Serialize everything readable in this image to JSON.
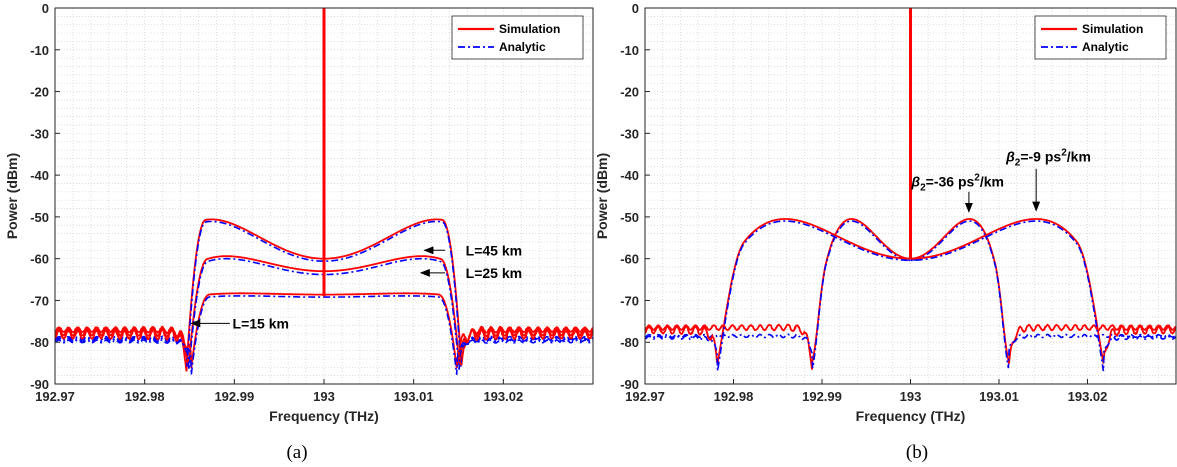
{
  "chart_data": [
    {
      "type": "line",
      "caption": "(a)",
      "xlabel": "Frequency (THz)",
      "ylabel": "Power (dBm)",
      "xlim": [
        192.97,
        193.03
      ],
      "ylim": [
        -90,
        0
      ],
      "xticks": [
        "192.97",
        "192.98",
        "192.99",
        "193",
        "193.01",
        "193.02"
      ],
      "yticks": [
        "0",
        "-10",
        "-20",
        "-30",
        "-40",
        "-50",
        "-60",
        "-70",
        "-80",
        "-90"
      ],
      "grid": "minor-dotted",
      "legend": {
        "position": "top-right",
        "entries": [
          "Simulation",
          "Analytic"
        ]
      },
      "colors": {
        "Simulation": "#ff0000",
        "Analytic": "#0000ff"
      },
      "pump": {
        "x": 193.0,
        "y_top": 0,
        "y_bottom": -69
      },
      "curves": [
        {
          "label": "L=45 km",
          "edges": [
            192.9847,
            193.0153
          ],
          "peak_sim": -50.6,
          "center_sim": -60,
          "peak_ana": -51.1,
          "center_ana": -60.6,
          "shape": 0.82
        },
        {
          "label": "L=25 km",
          "edges": [
            192.9849,
            193.0151
          ],
          "peak_sim": -59.4,
          "center_sim": -63,
          "peak_ana": -60.0,
          "center_ana": -63.8,
          "shape": 0.72
        },
        {
          "label": "L=15 km",
          "edges": [
            192.9852,
            193.0148
          ],
          "peak_sim": -68.3,
          "center_sim": -68.6,
          "peak_ana": -68.9,
          "center_ana": -69.2,
          "shape": 0.62
        }
      ],
      "floor_sim": -77,
      "floor_ana": -79,
      "annotations": [
        {
          "text": "L=45 km",
          "x": 193.0158,
          "y": -58,
          "from_x": 193.0135,
          "from_y": -58,
          "to_x": 193.0112,
          "to_y": -58
        },
        {
          "text": "L=25 km",
          "x": 193.0158,
          "y": -63.4,
          "from_x": 193.0135,
          "from_y": -63.4,
          "to_x": 193.0108,
          "to_y": -63.4
        },
        {
          "text": "L=15 km",
          "x": 192.9898,
          "y": -75.5,
          "from_x": 192.9895,
          "from_y": -75.5,
          "to_x": 192.9852,
          "to_y": -75.5
        }
      ]
    },
    {
      "type": "line",
      "caption": "(b)",
      "xlabel": "Frequency (THz)",
      "ylabel": "Power (dBm)",
      "xlim": [
        192.97,
        193.03
      ],
      "ylim": [
        -90,
        0
      ],
      "xticks": [
        "192.97",
        "192.98",
        "192.99",
        "193",
        "193.01",
        "193.02"
      ],
      "yticks": [
        "0",
        "-10",
        "-20",
        "-30",
        "-40",
        "-50",
        "-60",
        "-70",
        "-80",
        "-90"
      ],
      "grid": "minor-dotted",
      "legend": {
        "position": "top-right",
        "entries": [
          "Simulation",
          "Analytic"
        ]
      },
      "colors": {
        "Simulation": "#ff0000",
        "Analytic": "#0000ff"
      },
      "pump": {
        "x": 193.0,
        "y_top": 0,
        "y_bottom": -60
      },
      "curves": [
        {
          "label": "β2=-36 ps2/km",
          "edges": [
            192.9889,
            193.0111
          ],
          "peak_sim": -50.5,
          "center_sim": -60,
          "peak_ana": -51.0,
          "center_ana": -60.4,
          "shape": 0.6
        },
        {
          "label": "β2=-9 ps2/km",
          "edges": [
            192.9782,
            193.0218
          ],
          "peak_sim": -50.5,
          "center_sim": -60,
          "peak_ana": -51.0,
          "center_ana": -60.4,
          "shape": 0.65
        }
      ],
      "floor_sim": -76.5,
      "floor_ana": -78.5,
      "annotations": [
        {
          "text_parts": [
            "β",
            "2",
            "=-36 ps",
            "2",
            "/km"
          ],
          "x": 193.0001,
          "y": -41.5,
          "from_x": 193.0066,
          "from_y": -44,
          "to_x": 193.0066,
          "to_y": -48.8
        },
        {
          "text_parts": [
            "β",
            "2",
            "=-9 ps",
            "2",
            "/km"
          ],
          "x": 193.0108,
          "y": -35.5,
          "from_x": 193.0142,
          "from_y": -38.5,
          "to_x": 193.0142,
          "to_y": -48.5
        }
      ]
    }
  ]
}
